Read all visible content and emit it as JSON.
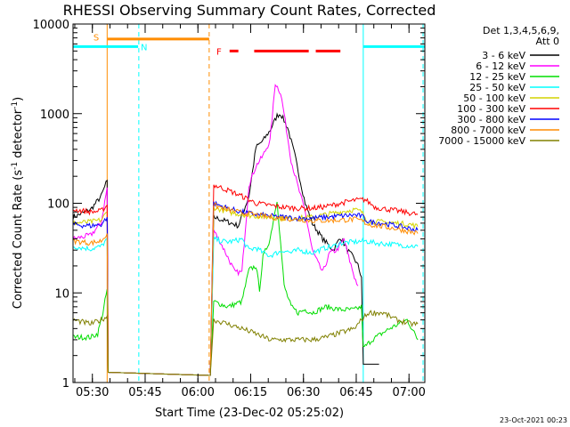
{
  "chart_data": {
    "type": "line",
    "title": "RHESSI Observing Summary Count Rates, Corrected",
    "xlabel": "Start Time (23-Dec-02 05:25:02)",
    "ylabel_main": "Corrected Count Rate (s",
    "ylabel_sup1": "-1",
    "ylabel_mid": " detector",
    "ylabel_sup2": "-1",
    "ylabel_end": ")",
    "yscale": "log",
    "ylim": [
      1,
      10000
    ],
    "xlim_minutes": [
      0,
      100
    ],
    "x_ticks": [
      {
        "t": 5.5,
        "label": "05:30"
      },
      {
        "t": 20.5,
        "label": "05:45"
      },
      {
        "t": 35.5,
        "label": "06:00"
      },
      {
        "t": 50.5,
        "label": "06:15"
      },
      {
        "t": 65.5,
        "label": "06:30"
      },
      {
        "t": 80.5,
        "label": "06:45"
      },
      {
        "t": 95.5,
        "label": "07:00"
      }
    ],
    "y_ticks": [
      {
        "v": 1,
        "label": "1"
      },
      {
        "v": 10,
        "label": "10"
      },
      {
        "v": 100,
        "label": "100"
      },
      {
        "v": 1000,
        "label": "1000"
      },
      {
        "v": 10000,
        "label": "10000"
      }
    ],
    "legend_header": [
      "Det 1,3,4,5,6,9,",
      "Att 0"
    ],
    "series": [
      {
        "name": "3 - 6 keV",
        "color": "#000000",
        "points": [
          [
            0,
            70
          ],
          [
            5,
            85
          ],
          [
            8,
            120
          ],
          [
            9.7,
            180
          ],
          [
            10,
            1.3
          ],
          [
            39,
            1.2
          ],
          [
            40,
            70
          ],
          [
            44,
            62
          ],
          [
            47,
            56
          ],
          [
            50,
            120
          ],
          [
            52,
            420
          ],
          [
            54,
            500
          ],
          [
            56,
            650
          ],
          [
            58,
            950
          ],
          [
            59,
            1000
          ],
          [
            61,
            700
          ],
          [
            63,
            350
          ],
          [
            65,
            150
          ],
          [
            66,
            100
          ],
          [
            68,
            60
          ],
          [
            71,
            40
          ],
          [
            74,
            30
          ],
          [
            76,
            42
          ],
          [
            78,
            30
          ],
          [
            80,
            24
          ],
          [
            81,
            20
          ],
          [
            82,
            15
          ],
          [
            82.5,
            1.6
          ],
          [
            87,
            1.6
          ]
        ]
      },
      {
        "name": "6 - 12 keV",
        "color": "#ff00ff",
        "points": [
          [
            0,
            40
          ],
          [
            5,
            44
          ],
          [
            8,
            60
          ],
          [
            9.7,
            150
          ],
          [
            10,
            1.3
          ],
          [
            39,
            1.2
          ],
          [
            40,
            50
          ],
          [
            42,
            36
          ],
          [
            44,
            25
          ],
          [
            46,
            17
          ],
          [
            48,
            17
          ],
          [
            50,
            160
          ],
          [
            52,
            260
          ],
          [
            54,
            340
          ],
          [
            56,
            500
          ],
          [
            57.5,
            2200
          ],
          [
            59,
            1700
          ],
          [
            60,
            1000
          ],
          [
            62,
            300
          ],
          [
            64,
            150
          ],
          [
            66,
            80
          ],
          [
            68,
            30
          ],
          [
            70,
            20
          ],
          [
            71,
            17
          ],
          [
            73,
            28
          ],
          [
            75,
            30
          ],
          [
            77,
            40
          ],
          [
            78,
            28
          ],
          [
            80,
            15
          ],
          [
            81,
            12
          ]
        ]
      },
      {
        "name": "12 - 25 keV",
        "color": "#00dd00",
        "points": [
          [
            0,
            3.2
          ],
          [
            5,
            3.2
          ],
          [
            7,
            3.5
          ],
          [
            8.5,
            6
          ],
          [
            9.7,
            11
          ],
          [
            10,
            1.3
          ],
          [
            39,
            1.2
          ],
          [
            40,
            8
          ],
          [
            44,
            7
          ],
          [
            48,
            8
          ],
          [
            50,
            18
          ],
          [
            52,
            20
          ],
          [
            53,
            11
          ],
          [
            54,
            25
          ],
          [
            56,
            40
          ],
          [
            58,
            110
          ],
          [
            60,
            12
          ],
          [
            62,
            7
          ],
          [
            64,
            6
          ],
          [
            66,
            6.5
          ],
          [
            68,
            6
          ],
          [
            70,
            6.5
          ],
          [
            72,
            7
          ],
          [
            76,
            6.5
          ],
          [
            80,
            6.5
          ],
          [
            82,
            7
          ],
          [
            82.5,
            2.4
          ],
          [
            85,
            3
          ],
          [
            90,
            4
          ],
          [
            95,
            5
          ],
          [
            98,
            3
          ]
        ]
      },
      {
        "name": "25 - 50 keV",
        "color": "#00ffff",
        "points": [
          [
            0,
            33
          ],
          [
            5,
            31
          ],
          [
            8,
            33
          ],
          [
            9.7,
            40
          ],
          [
            10,
            1.3
          ],
          [
            39,
            1.2
          ],
          [
            40,
            40
          ],
          [
            42,
            38
          ],
          [
            44,
            37
          ],
          [
            46,
            38
          ],
          [
            48,
            40
          ],
          [
            50,
            30
          ],
          [
            52,
            32
          ],
          [
            54,
            28
          ],
          [
            56,
            26
          ],
          [
            58,
            28
          ],
          [
            60,
            30
          ],
          [
            62,
            28
          ],
          [
            64,
            30
          ],
          [
            66,
            29
          ],
          [
            68,
            28
          ],
          [
            70,
            30
          ],
          [
            72,
            32
          ],
          [
            74,
            33
          ],
          [
            76,
            36
          ],
          [
            80,
            37
          ],
          [
            83,
            38
          ],
          [
            86,
            36
          ],
          [
            90,
            35
          ],
          [
            94,
            34
          ],
          [
            98,
            33
          ]
        ]
      },
      {
        "name": "50 - 100 keV",
        "color": "#d4d400",
        "points": [
          [
            0,
            60
          ],
          [
            5,
            62
          ],
          [
            8,
            65
          ],
          [
            9.7,
            80
          ],
          [
            10,
            1.3
          ],
          [
            39,
            1.2
          ],
          [
            40,
            90
          ],
          [
            44,
            80
          ],
          [
            48,
            75
          ],
          [
            52,
            72
          ],
          [
            56,
            70
          ],
          [
            60,
            68
          ],
          [
            64,
            68
          ],
          [
            68,
            70
          ],
          [
            72,
            75
          ],
          [
            76,
            80
          ],
          [
            80,
            85
          ],
          [
            82,
            80
          ],
          [
            84,
            62
          ],
          [
            88,
            62
          ],
          [
            92,
            60
          ],
          [
            96,
            58
          ],
          [
            98,
            55
          ]
        ]
      },
      {
        "name": "100 - 300 keV",
        "color": "#ff0000",
        "points": [
          [
            0,
            85
          ],
          [
            5,
            80
          ],
          [
            8,
            82
          ],
          [
            9.7,
            95
          ],
          [
            10,
            1.3
          ],
          [
            39,
            1.2
          ],
          [
            40,
            160
          ],
          [
            44,
            140
          ],
          [
            48,
            120
          ],
          [
            52,
            100
          ],
          [
            56,
            95
          ],
          [
            60,
            90
          ],
          [
            64,
            88
          ],
          [
            68,
            88
          ],
          [
            72,
            92
          ],
          [
            76,
            100
          ],
          [
            80,
            108
          ],
          [
            83,
            110
          ],
          [
            86,
            90
          ],
          [
            90,
            85
          ],
          [
            94,
            80
          ],
          [
            98,
            75
          ]
        ]
      },
      {
        "name": "300 - 800 keV",
        "color": "#0000ff",
        "points": [
          [
            0,
            58
          ],
          [
            5,
            56
          ],
          [
            8,
            58
          ],
          [
            9.7,
            70
          ],
          [
            10,
            1.3
          ],
          [
            39,
            1.2
          ],
          [
            40,
            100
          ],
          [
            44,
            88
          ],
          [
            48,
            80
          ],
          [
            52,
            75
          ],
          [
            56,
            72
          ],
          [
            60,
            70
          ],
          [
            64,
            68
          ],
          [
            68,
            68
          ],
          [
            72,
            70
          ],
          [
            76,
            72
          ],
          [
            80,
            74
          ],
          [
            82,
            72
          ],
          [
            84,
            62
          ],
          [
            88,
            60
          ],
          [
            92,
            56
          ],
          [
            96,
            52
          ],
          [
            98,
            50
          ]
        ]
      },
      {
        "name": "800 - 7000 keV",
        "color": "#ff8c00",
        "points": [
          [
            0,
            38
          ],
          [
            5,
            36
          ],
          [
            8,
            38
          ],
          [
            9.7,
            46
          ],
          [
            10,
            1.3
          ],
          [
            39,
            1.2
          ],
          [
            40,
            95
          ],
          [
            44,
            85
          ],
          [
            48,
            78
          ],
          [
            52,
            74
          ],
          [
            56,
            70
          ],
          [
            60,
            68
          ],
          [
            64,
            66
          ],
          [
            68,
            64
          ],
          [
            72,
            64
          ],
          [
            76,
            65
          ],
          [
            80,
            66
          ],
          [
            82,
            64
          ],
          [
            84,
            58
          ],
          [
            88,
            55
          ],
          [
            92,
            52
          ],
          [
            96,
            48
          ],
          [
            98,
            46
          ]
        ]
      },
      {
        "name": "7000 - 15000 keV",
        "color": "#808000",
        "points": [
          [
            0,
            5
          ],
          [
            5,
            4.5
          ],
          [
            8,
            5
          ],
          [
            9.7,
            5.5
          ],
          [
            10,
            1.3
          ],
          [
            39,
            1.2
          ],
          [
            40,
            5
          ],
          [
            44,
            4.5
          ],
          [
            48,
            4
          ],
          [
            52,
            3.5
          ],
          [
            56,
            3
          ],
          [
            60,
            3
          ],
          [
            64,
            3
          ],
          [
            68,
            3
          ],
          [
            72,
            3.2
          ],
          [
            76,
            3.6
          ],
          [
            80,
            4
          ],
          [
            82,
            5
          ],
          [
            84,
            6
          ],
          [
            88,
            6
          ],
          [
            92,
            5
          ],
          [
            96,
            4.5
          ],
          [
            98,
            4.5
          ]
        ]
      }
    ],
    "flags": [
      {
        "label": "S",
        "color": "#ff8c00",
        "level": 6800,
        "start": 9.8,
        "end": 38.7
      },
      {
        "label": "N",
        "color": "#00ffff",
        "level": 5600,
        "start": 0,
        "end": 18.5
      },
      {
        "label": "N",
        "color": "#00ffff",
        "level": 5600,
        "start": 82.5,
        "end": 100
      },
      {
        "label": "F",
        "color": "#ff0000",
        "level": 5000,
        "start": 44.5,
        "end": 47
      },
      {
        "label": "F",
        "color": "#ff0000",
        "level": 5000,
        "start": 51.5,
        "end": 67
      },
      {
        "label": "F",
        "color": "#ff0000",
        "level": 5000,
        "start": 69,
        "end": 76
      }
    ],
    "flag_labels": [
      {
        "text": "S",
        "color": "#ff8c00",
        "t": 6.6,
        "level": 7200
      },
      {
        "text": "N",
        "color": "#00ffff",
        "t": 20.2,
        "level": 5600
      },
      {
        "text": "F",
        "color": "#ff0000",
        "t": 41.5,
        "level": 5000
      }
    ],
    "vlines": [
      {
        "t": 9.7,
        "color": "#ff8c00",
        "style": "solid"
      },
      {
        "t": 18.7,
        "color": "#00ffff",
        "style": "dashed"
      },
      {
        "t": 38.7,
        "color": "#ff8c00",
        "style": "dashed"
      },
      {
        "t": 82.5,
        "color": "#00ffff",
        "style": "solid"
      },
      {
        "t": 99.5,
        "color": "#00ffff",
        "style": "dashed"
      }
    ],
    "timestamp": "23-Oct-2021 00:23"
  }
}
